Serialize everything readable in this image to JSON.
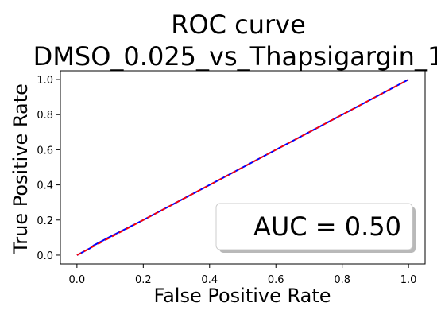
{
  "chart_data": {
    "type": "line",
    "title": "ROC curve",
    "subtitle": "DMSO_0.025_vs_Thapsigargin_1",
    "xlabel": "False Positive Rate",
    "ylabel": "True Positive Rate",
    "xlim": [
      -0.05,
      1.05
    ],
    "ylim": [
      -0.05,
      1.05
    ],
    "x_ticks": [
      0.0,
      0.2,
      0.4,
      0.6,
      0.8,
      1.0
    ],
    "y_ticks": [
      0.0,
      0.2,
      0.4,
      0.6,
      0.8,
      1.0
    ],
    "x_tick_labels": [
      "0.0",
      "0.2",
      "0.4",
      "0.6",
      "0.8",
      "1.0"
    ],
    "y_tick_labels": [
      "0.0",
      "0.2",
      "0.4",
      "0.6",
      "0.8",
      "1.0"
    ],
    "grid": false,
    "legend_text": "AUC = 0.50",
    "legend_position": "lower-right",
    "series": [
      {
        "color": "#0000ff",
        "style": "solid",
        "x": [
          0.0,
          0.04,
          0.05,
          0.1,
          0.2,
          0.3,
          0.4,
          0.5,
          0.6,
          0.7,
          0.8,
          0.9,
          1.0
        ],
        "y": [
          0.0,
          0.04,
          0.055,
          0.105,
          0.2,
          0.3,
          0.4,
          0.5,
          0.6,
          0.7,
          0.8,
          0.9,
          1.0
        ]
      },
      {
        "color": "#ff0000",
        "style": "dashed",
        "x": [
          0.0,
          1.0
        ],
        "y": [
          0.0,
          1.0
        ]
      }
    ]
  }
}
